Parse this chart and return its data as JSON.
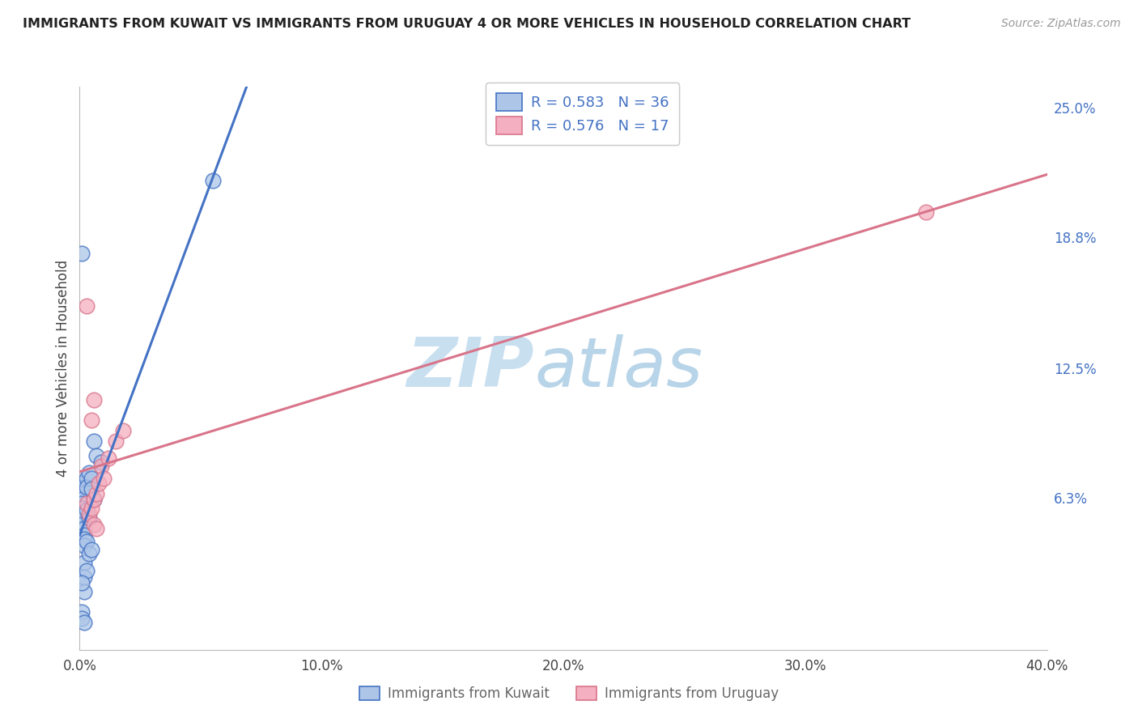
{
  "title": "IMMIGRANTS FROM KUWAIT VS IMMIGRANTS FROM URUGUAY 4 OR MORE VEHICLES IN HOUSEHOLD CORRELATION CHART",
  "source": "Source: ZipAtlas.com",
  "ylabel_label": "4 or more Vehicles in Household",
  "legend_kuwait": "R = 0.583   N = 36",
  "legend_uruguay": "R = 0.576   N = 17",
  "legend_label_kuwait": "Immigrants from Kuwait",
  "legend_label_uruguay": "Immigrants from Uruguay",
  "color_kuwait": "#adc6e8",
  "color_uruguay": "#f4afc0",
  "line_color_kuwait": "#4472c4",
  "line_color_uruguay": "#d9748a",
  "text_color_blue": "#4472c4",
  "watermark_zip_color": "#c8dff0",
  "watermark_atlas_color": "#b8d4e8",
  "background_color": "#ffffff",
  "grid_color": "#d8e0ec",
  "xmin": 0.0,
  "xmax": 0.4,
  "ymin": -0.01,
  "ymax": 0.26,
  "ytick_vals": [
    0.0,
    0.063,
    0.125,
    0.188,
    0.25
  ],
  "ytick_labels": [
    "",
    "6.3%",
    "12.5%",
    "18.8%",
    "25.0%"
  ],
  "xtick_vals": [
    0.0,
    0.1,
    0.2,
    0.3,
    0.4
  ],
  "xtick_labels": [
    "0.0%",
    "10.0%",
    "20.0%",
    "30.0%",
    "40.0%"
  ],
  "kuwait_x": [
    0.001,
    0.001,
    0.001,
    0.001,
    0.001,
    0.001,
    0.001,
    0.001,
    0.002,
    0.002,
    0.002,
    0.002,
    0.002,
    0.002,
    0.003,
    0.003,
    0.003,
    0.003,
    0.003,
    0.004,
    0.004,
    0.004,
    0.005,
    0.005,
    0.005,
    0.006,
    0.006,
    0.007,
    0.009,
    0.001,
    0.001,
    0.002,
    0.055,
    0.001,
    0.001,
    0.002
  ],
  "kuwait_y": [
    0.07,
    0.068,
    0.065,
    0.062,
    0.06,
    0.058,
    0.055,
    0.05,
    0.048,
    0.045,
    0.043,
    0.04,
    0.032,
    0.025,
    0.072,
    0.068,
    0.057,
    0.042,
    0.028,
    0.075,
    0.053,
    0.036,
    0.072,
    0.067,
    0.038,
    0.09,
    0.062,
    0.083,
    0.08,
    0.008,
    0.005,
    0.018,
    0.215,
    0.18,
    0.022,
    0.003
  ],
  "uruguay_x": [
    0.003,
    0.004,
    0.005,
    0.006,
    0.006,
    0.007,
    0.007,
    0.008,
    0.009,
    0.01,
    0.012,
    0.015,
    0.018,
    0.003,
    0.005,
    0.006,
    0.35
  ],
  "uruguay_y": [
    0.06,
    0.055,
    0.058,
    0.062,
    0.05,
    0.065,
    0.048,
    0.07,
    0.078,
    0.072,
    0.082,
    0.09,
    0.095,
    0.155,
    0.1,
    0.11,
    0.2
  ]
}
